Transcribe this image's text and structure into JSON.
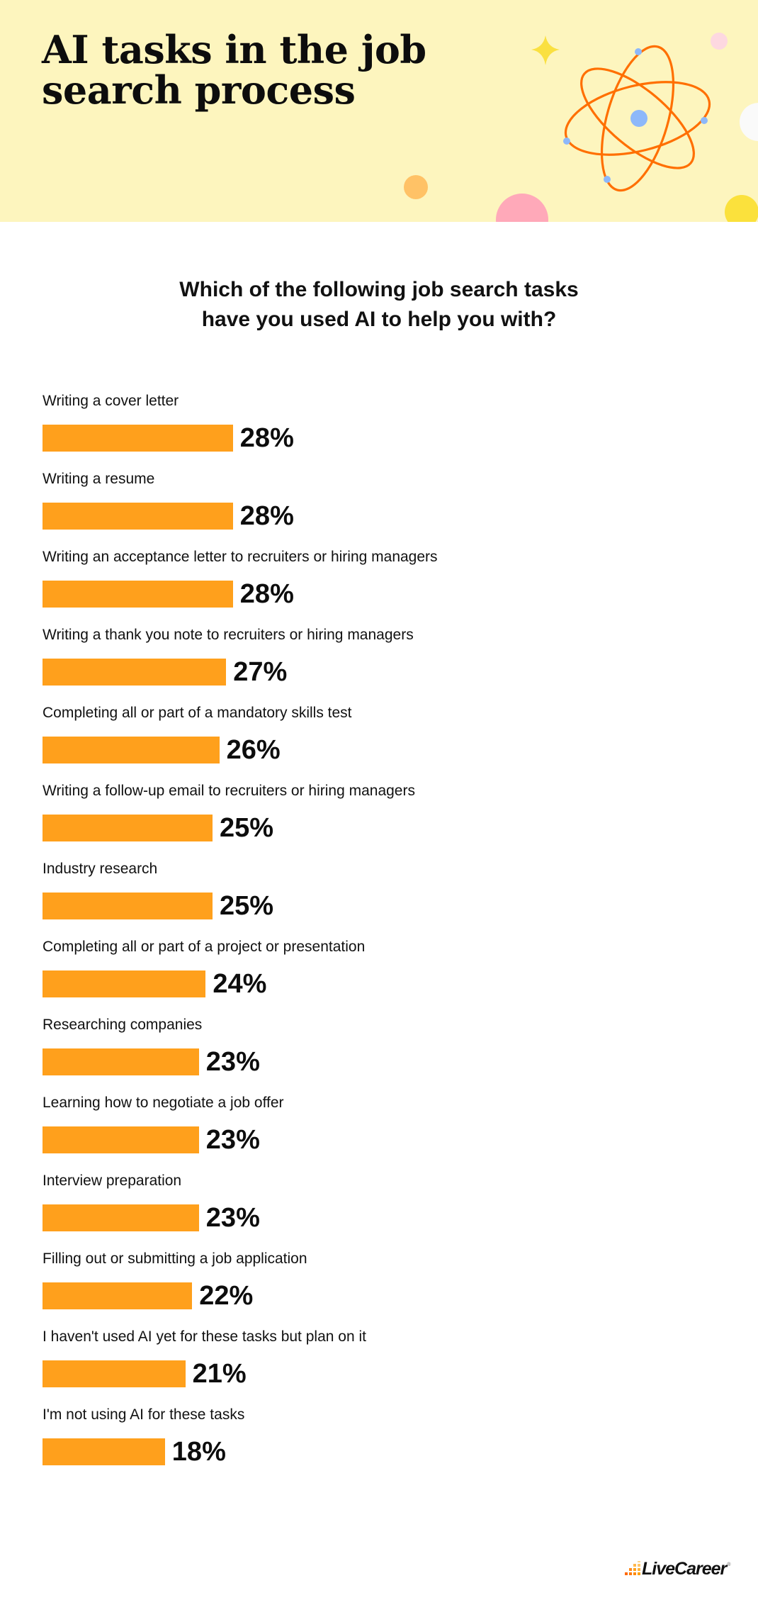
{
  "header": {
    "title_line1": "AI tasks in the job",
    "title_line2": "search process",
    "background_color": "#FDF5BE"
  },
  "question": {
    "line1": "Which of the following job search tasks",
    "line2": "have you used AI to help you with?"
  },
  "bars": [
    {
      "label": "Writing a cover letter",
      "value": 28,
      "display": "28%"
    },
    {
      "label": "Writing a resume",
      "value": 28,
      "display": "28%"
    },
    {
      "label": "Writing an acceptance letter to recruiters or hiring managers",
      "value": 28,
      "display": "28%"
    },
    {
      "label": "Writing a thank you note to recruiters or hiring managers",
      "value": 27,
      "display": "27%"
    },
    {
      "label": "Completing all or part of a mandatory skills test",
      "value": 26,
      "display": "26%"
    },
    {
      "label": "Writing a follow-up email to recruiters or hiring managers",
      "value": 25,
      "display": "25%"
    },
    {
      "label": "Industry research",
      "value": 25,
      "display": "25%"
    },
    {
      "label": "Completing all or part of a project or presentation",
      "value": 24,
      "display": "24%"
    },
    {
      "label": "Researching companies",
      "value": 23,
      "display": "23%"
    },
    {
      "label": "Learning how to negotiate a job offer",
      "value": 23,
      "display": "23%"
    },
    {
      "label": "Interview preparation",
      "value": 23,
      "display": "23%"
    },
    {
      "label": "Filling out or submitting a job application",
      "value": 22,
      "display": "22%"
    },
    {
      "label": "I haven't used AI yet for these tasks but plan on it",
      "value": 21,
      "display": "21%"
    },
    {
      "label": "I'm not using AI for these tasks",
      "value": 18,
      "display": "18%"
    }
  ],
  "colors": {
    "bar": "#FFA01C",
    "header_bg": "#FDF5BE",
    "atom_orbit": "#FF6F00",
    "atom_particle": "#8DB8FA"
  },
  "footer": {
    "logo_text": "LiveCareer",
    "logo_reg": "®"
  },
  "chart_data": {
    "type": "bar",
    "orientation": "horizontal",
    "title": "Which of the following job search tasks have you used AI to help you with?",
    "xlabel": "",
    "ylabel": "",
    "grid": false,
    "legend": "none",
    "value_suffix": "%",
    "categories": [
      "Writing a cover letter",
      "Writing a resume",
      "Writing an acceptance letter to recruiters or hiring managers",
      "Writing a thank you note to recruiters or hiring managers",
      "Completing all or part of a mandatory skills test",
      "Writing a follow-up email to recruiters or hiring managers",
      "Industry research",
      "Completing all or part of a project or presentation",
      "Researching companies",
      "Learning how to negotiate a job offer",
      "Interview preparation",
      "Filling out or submitting a job application",
      "I haven't used AI yet for these tasks but plan on it",
      "I'm not using AI for these tasks"
    ],
    "values": [
      28,
      28,
      28,
      27,
      26,
      25,
      25,
      24,
      23,
      23,
      23,
      22,
      21,
      18
    ]
  }
}
